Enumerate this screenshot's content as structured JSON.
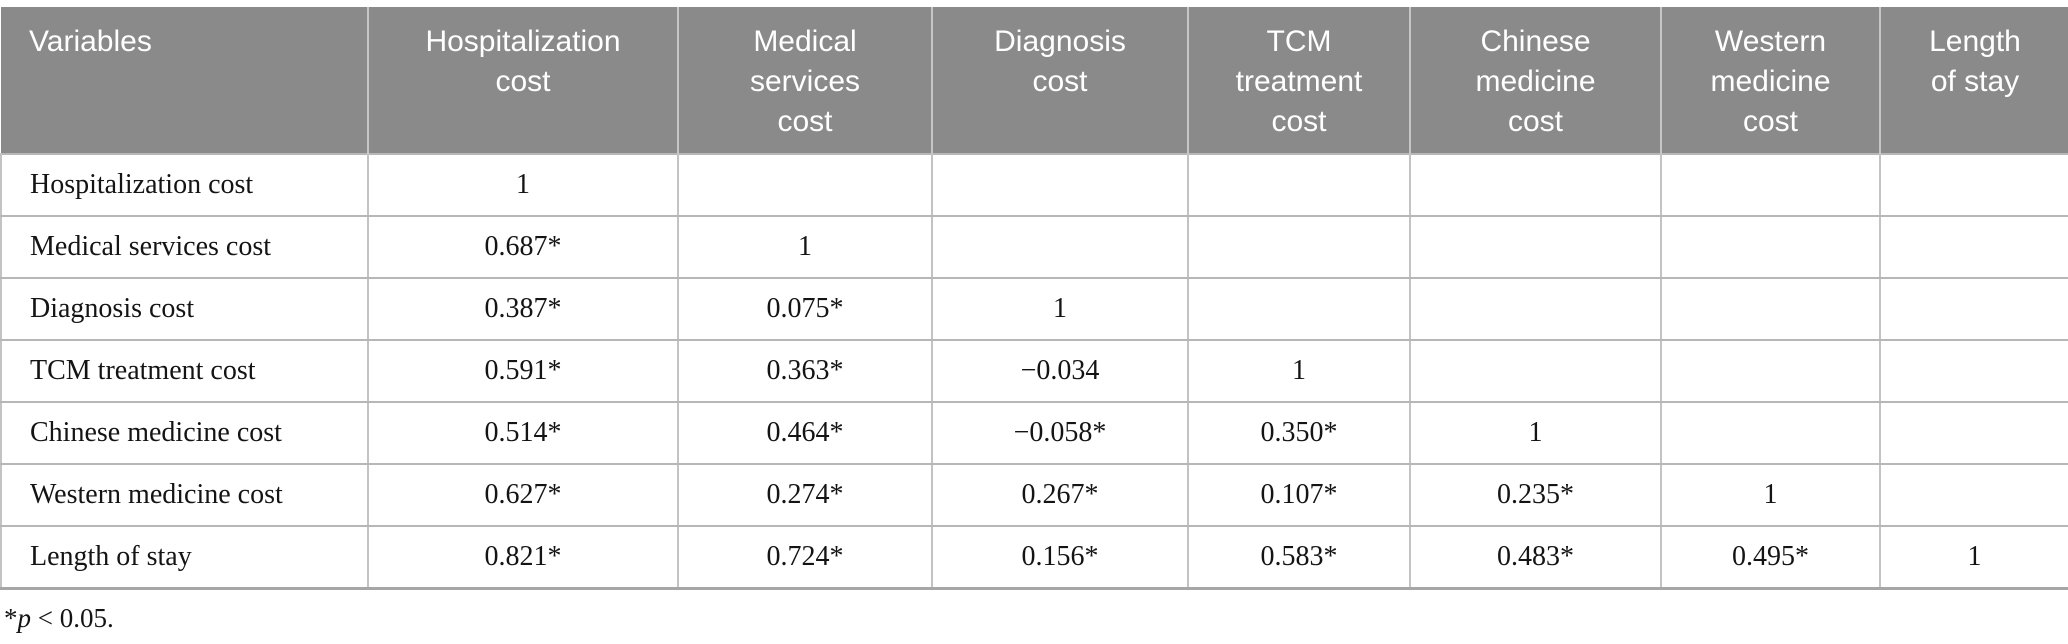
{
  "colors": {
    "header_bg": "#8a8a8a",
    "header_text": "#ffffff",
    "body_text": "#141414",
    "grid_border": "#bcbcbc"
  },
  "table": {
    "header": {
      "columns": [
        "Variables",
        "Hospitalization cost",
        "Medical services cost",
        "Diagnosis cost",
        "TCM treatment cost",
        "Chinese medicine cost",
        "Western medicine cost",
        "Length of stay"
      ]
    },
    "rows": [
      {
        "label": "Hospitalization cost",
        "values": [
          "1",
          "",
          "",
          "",
          "",
          "",
          ""
        ]
      },
      {
        "label": "Medical services cost",
        "values": [
          "0.687*",
          "1",
          "",
          "",
          "",
          "",
          ""
        ]
      },
      {
        "label": "Diagnosis cost",
        "values": [
          "0.387*",
          "0.075*",
          "1",
          "",
          "",
          "",
          ""
        ]
      },
      {
        "label": "TCM treatment cost",
        "values": [
          "0.591*",
          "0.363*",
          "−0.034",
          "1",
          "",
          "",
          ""
        ]
      },
      {
        "label": "Chinese medicine cost",
        "values": [
          "0.514*",
          "0.464*",
          "−0.058*",
          "0.350*",
          "1",
          "",
          ""
        ]
      },
      {
        "label": "Western medicine cost",
        "values": [
          "0.627*",
          "0.274*",
          "0.267*",
          "0.107*",
          "0.235*",
          "1",
          ""
        ]
      },
      {
        "label": "Length of stay",
        "values": [
          "0.821*",
          "0.724*",
          "0.156*",
          "0.583*",
          "0.483*",
          "0.495*",
          "1"
        ]
      }
    ],
    "footnote": {
      "prefix": "*",
      "italic": "p",
      "suffix": " < 0.05."
    }
  }
}
